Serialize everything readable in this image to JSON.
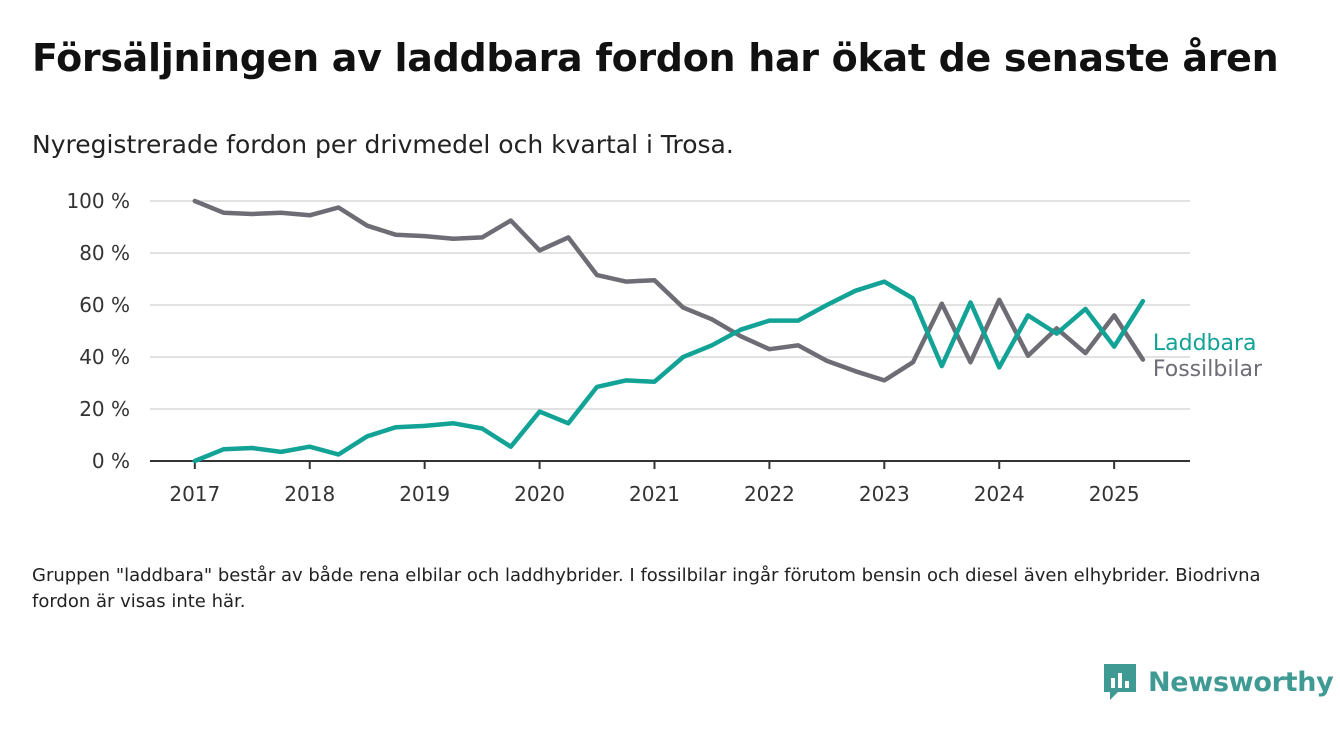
{
  "title": "Försäljningen av laddbara fordon har ökat de senaste åren",
  "subtitle": "Nyregistrerade fordon per drivmedel och kvartal i Trosa.",
  "footnote": "Gruppen \"laddbara\" består av både rena elbilar och laddhybrider. I fossilbilar ingår förutom bensin och diesel även elhybrider. Biodrivna fordon är visas inte här.",
  "brand": {
    "name": "Newsworthy",
    "icon": "newsworthy-logo-icon",
    "color": "#3f9a94"
  },
  "chart_data": {
    "type": "line",
    "x": [
      2017.0,
      2017.25,
      2017.5,
      2017.75,
      2018.0,
      2018.25,
      2018.5,
      2018.75,
      2019.0,
      2019.25,
      2019.5,
      2019.75,
      2020.0,
      2020.25,
      2020.5,
      2020.75,
      2021.0,
      2021.25,
      2021.5,
      2021.75,
      2022.0,
      2022.25,
      2022.5,
      2022.75,
      2023.0,
      2023.25,
      2023.5,
      2023.75,
      2024.0,
      2024.25,
      2024.5,
      2024.75,
      2025.0,
      2025.25
    ],
    "series": [
      {
        "name": "Laddbara",
        "color": "#12a396",
        "values": [
          0,
          4.5,
          5,
          3.5,
          5.5,
          2.5,
          9.5,
          13,
          13.5,
          14.5,
          12.5,
          5.5,
          19,
          14.5,
          28.5,
          31,
          30.5,
          40,
          44.5,
          50.5,
          54,
          54,
          60,
          65.5,
          69,
          62.5,
          36.5,
          61,
          36,
          56,
          49,
          58.5,
          44,
          61.5
        ]
      },
      {
        "name": "Fossilbilar",
        "color": "#6e6d75",
        "values": [
          100,
          95.5,
          95,
          95.5,
          94.5,
          97.5,
          90.5,
          87,
          86.5,
          85.5,
          86,
          92.5,
          81,
          86,
          71.5,
          69,
          69.5,
          59,
          54.5,
          48,
          43,
          44.5,
          38.5,
          34.5,
          31,
          38,
          60.5,
          38,
          62,
          40.5,
          51,
          41.5,
          56,
          39
        ]
      }
    ],
    "x_ticks": [
      2017,
      2018,
      2019,
      2020,
      2021,
      2022,
      2023,
      2024,
      2025
    ],
    "y_ticks": [
      0,
      20,
      40,
      60,
      80,
      100
    ],
    "y_tick_labels": [
      "0 %",
      "20 %",
      "40 %",
      "60 %",
      "80 %",
      "100 %"
    ],
    "xlim": [
      2016.61,
      2025.66
    ],
    "ylim": [
      0,
      100
    ],
    "grid": "horizontal",
    "legend_placement": "right, at line ends"
  }
}
